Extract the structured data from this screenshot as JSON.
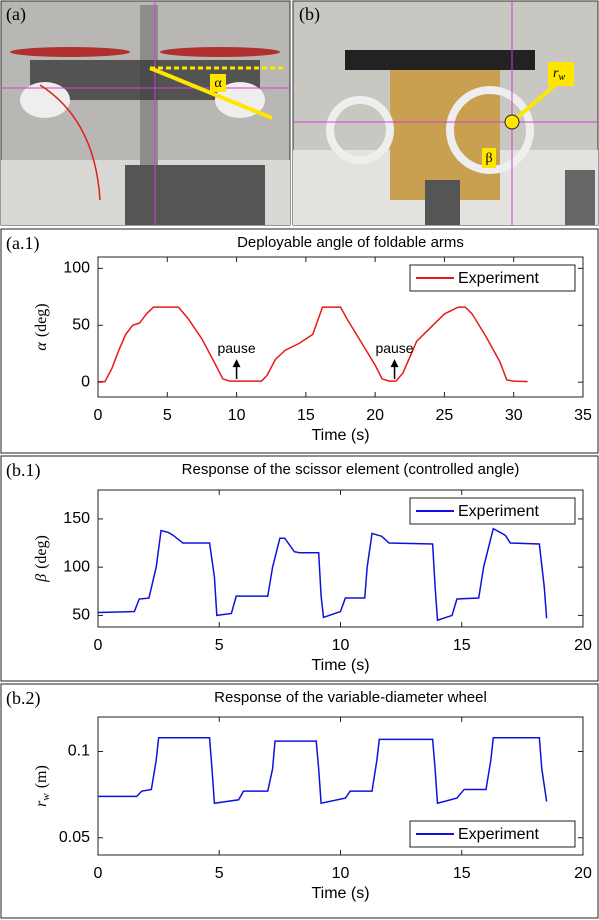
{
  "images": [
    {
      "label": "(a)",
      "annotation": "α"
    },
    {
      "label": "(b)",
      "annotation_symbol": "r",
      "annotation_subscript": "w",
      "annotation2": "β"
    }
  ],
  "chart_data": [
    {
      "type": "line",
      "panel_label": "(a.1)",
      "title": "Deployable angle of foldable arms",
      "xlabel": "Time (s)",
      "ylabel": {
        "symbol": "α",
        "unit": "(deg)"
      },
      "x": [
        0,
        0.5,
        1,
        1.5,
        2,
        2.5,
        3,
        3.5,
        4,
        5,
        5.8,
        6.5,
        7.5,
        8.5,
        9,
        9.5,
        10,
        11,
        11.8,
        12.2,
        12.8,
        13.5,
        14.5,
        15.5,
        16.2,
        17,
        17.5,
        18,
        19,
        20,
        20.5,
        21,
        21.5,
        22,
        22.5,
        23,
        24,
        25,
        26,
        26.5,
        27,
        28,
        29,
        29.5,
        30,
        31
      ],
      "series": [
        {
          "name": "Experiment",
          "color": "#e8191b",
          "values": [
            0.5,
            0.5,
            12,
            28,
            42,
            50,
            52,
            60,
            66,
            66,
            66,
            56,
            38,
            15,
            3,
            1,
            1,
            1,
            1,
            6,
            20,
            28,
            34,
            42,
            66,
            66,
            66,
            55,
            35,
            15,
            3,
            1,
            1,
            8,
            22,
            36,
            48,
            60,
            66,
            66,
            60,
            40,
            18,
            2,
            1,
            0.5
          ]
        }
      ],
      "xlim": [
        0,
        35
      ],
      "xticks": [
        0,
        5,
        10,
        15,
        20,
        25,
        30,
        35
      ],
      "ylim": [
        -13,
        110
      ],
      "yticks": [
        0,
        50,
        100
      ],
      "legend": "upper right",
      "annotations": [
        {
          "text": "pause",
          "x": 10,
          "y": 1
        },
        {
          "text": "pause",
          "x": 21.4,
          "y": 1
        }
      ]
    },
    {
      "type": "line",
      "panel_label": "(b.1)",
      "title": "Response of the scissor element (controlled angle)",
      "xlabel": "Time (s)",
      "ylabel": {
        "symbol": "β",
        "unit": "(deg)"
      },
      "x": [
        0,
        1.5,
        1.7,
        2.1,
        2.4,
        2.6,
        2.9,
        3.1,
        3.5,
        4.6,
        4.8,
        4.9,
        5.5,
        5.7,
        7,
        7.2,
        7.5,
        7.7,
        8.1,
        8.3,
        9.1,
        9.2,
        9.3,
        10,
        10.2,
        11,
        11.1,
        11.3,
        11.7,
        12,
        13.8,
        13.9,
        14.0,
        14.6,
        14.8,
        15.7,
        15.9,
        16.3,
        16.8,
        17,
        18.2,
        18.4,
        18.5
      ],
      "series": [
        {
          "name": "Experiment",
          "color": "#1010e0",
          "values": [
            53,
            54,
            67,
            68,
            100,
            138,
            136,
            133,
            125,
            125,
            90,
            50,
            52,
            70,
            70,
            100,
            130,
            130,
            116,
            115,
            115,
            70,
            48,
            54,
            68,
            68,
            100,
            135,
            132,
            125,
            124,
            80,
            45,
            50,
            67,
            68,
            100,
            140,
            133,
            125,
            124,
            80,
            47
          ]
        }
      ],
      "xlim": [
        0,
        20
      ],
      "xticks": [
        0,
        5,
        10,
        15,
        20
      ],
      "ylim": [
        38,
        180
      ],
      "yticks": [
        50,
        100,
        150
      ],
      "legend": "upper right"
    },
    {
      "type": "line",
      "panel_label": "(b.2)",
      "title": "Response of the variable-diameter wheel",
      "xlabel": "Time (s)",
      "ylabel": {
        "symbol": "r",
        "subscript": "w",
        "unit": "(m)"
      },
      "x": [
        0,
        1.6,
        1.8,
        2.2,
        2.4,
        2.5,
        4.6,
        4.7,
        4.8,
        5.8,
        6.0,
        7.0,
        7.2,
        7.3,
        9.0,
        9.1,
        9.2,
        10.2,
        10.4,
        11.3,
        11.5,
        11.6,
        13.8,
        13.9,
        14.0,
        14.8,
        15.1,
        16.0,
        16.2,
        16.3,
        18.2,
        18.3,
        18.5
      ],
      "series": [
        {
          "name": "Experiment",
          "color": "#1010e0",
          "values": [
            0.074,
            0.074,
            0.077,
            0.078,
            0.095,
            0.108,
            0.108,
            0.09,
            0.07,
            0.072,
            0.077,
            0.077,
            0.09,
            0.106,
            0.106,
            0.09,
            0.07,
            0.073,
            0.077,
            0.077,
            0.095,
            0.107,
            0.107,
            0.09,
            0.07,
            0.073,
            0.078,
            0.078,
            0.095,
            0.108,
            0.108,
            0.09,
            0.071
          ]
        }
      ],
      "xlim": [
        0,
        20
      ],
      "xticks": [
        0,
        5,
        10,
        15,
        20
      ],
      "ylim": [
        0.04,
        0.12
      ],
      "yticks": [
        0.05,
        0.1
      ],
      "legend": "lower right"
    }
  ]
}
